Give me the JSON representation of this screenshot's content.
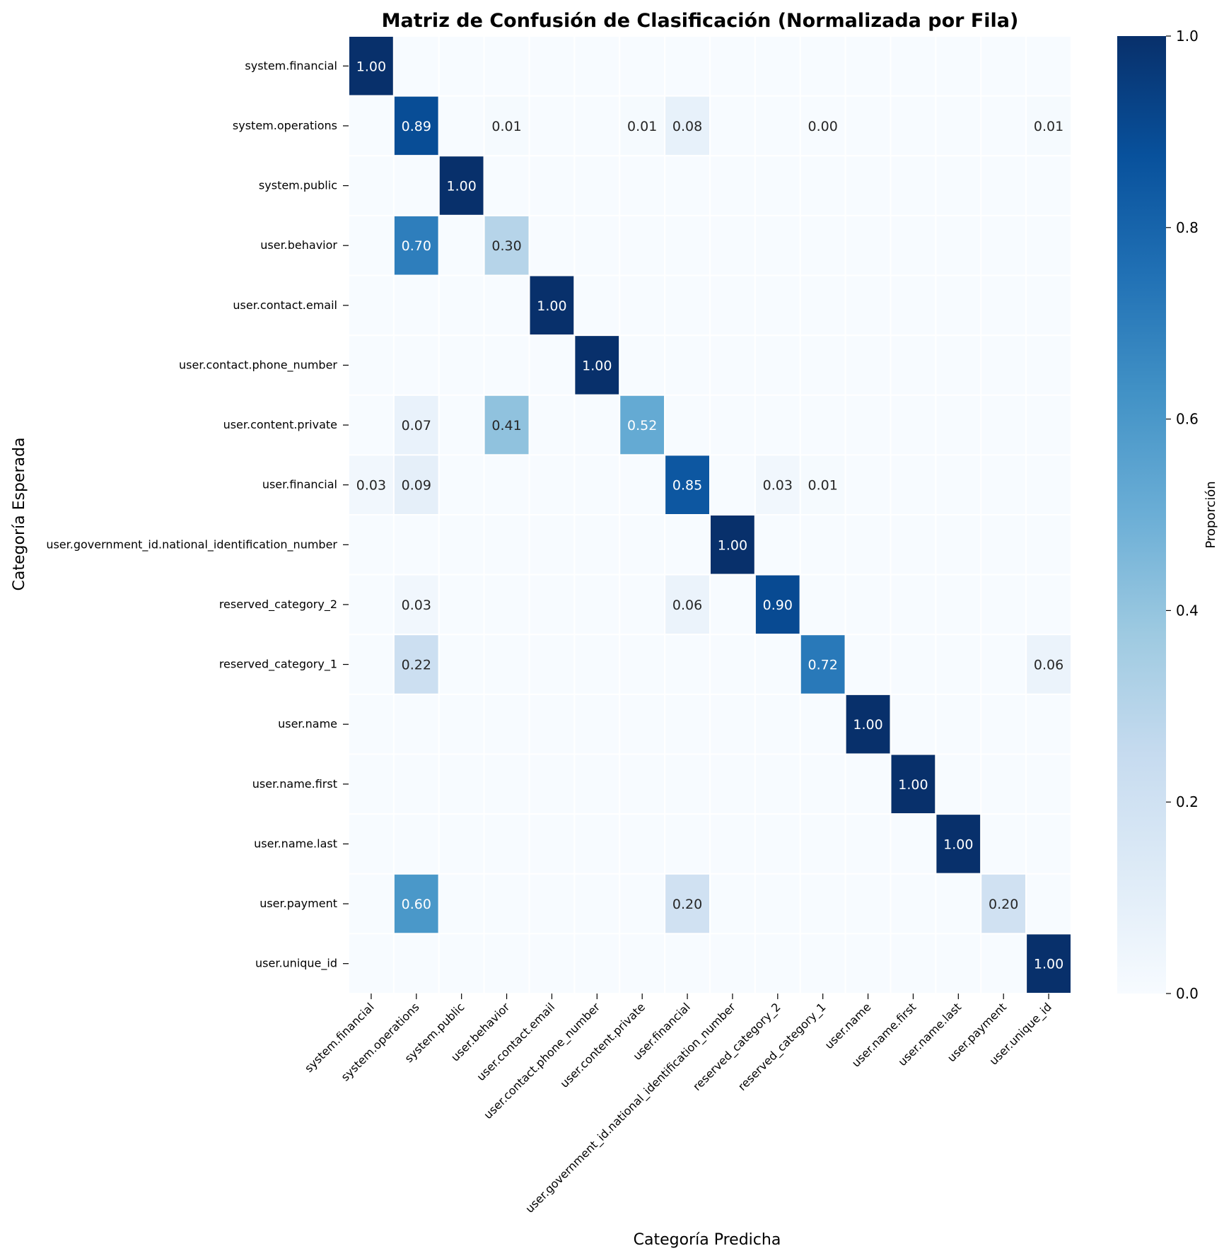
{
  "chart_data": {
    "type": "heatmap",
    "title": "Matriz de Confusión de Clasificación (Normalizada por Fila)",
    "xlabel": "Categoría Predicha",
    "ylabel": "Categoría Esperada",
    "colorbar_label": "Proporción",
    "colorbar_ticks": [
      "0.0",
      "0.2",
      "0.4",
      "0.6",
      "0.8",
      "1.0"
    ],
    "colorbar_range": [
      0,
      1
    ],
    "colormap": "Blues",
    "categories": [
      "system.financial",
      "system.operations",
      "system.public",
      "user.behavior",
      "user.contact.email",
      "user.contact.phone_number",
      "user.content.private",
      "user.financial",
      "user.government_id.national_identification_number",
      "reserved_category_2",
      "reserved_category_1",
      "user.name",
      "user.name.first",
      "user.name.last",
      "user.payment",
      "user.unique_id"
    ],
    "values": [
      [
        1.0,
        0,
        0,
        0,
        0,
        0,
        0,
        0,
        0,
        0,
        0,
        0,
        0,
        0,
        0,
        0
      ],
      [
        0,
        0.89,
        0,
        0.01,
        0,
        0,
        0.01,
        0.08,
        0,
        0,
        0.001,
        0,
        0,
        0,
        0,
        0.01
      ],
      [
        0,
        0,
        1.0,
        0,
        0,
        0,
        0,
        0,
        0,
        0,
        0,
        0,
        0,
        0,
        0,
        0
      ],
      [
        0,
        0.7,
        0,
        0.3,
        0,
        0,
        0,
        0,
        0,
        0,
        0,
        0,
        0,
        0,
        0,
        0
      ],
      [
        0,
        0,
        0,
        0,
        1.0,
        0,
        0,
        0,
        0,
        0,
        0,
        0,
        0,
        0,
        0,
        0
      ],
      [
        0,
        0,
        0,
        0,
        0,
        1.0,
        0,
        0,
        0,
        0,
        0,
        0,
        0,
        0,
        0,
        0
      ],
      [
        0,
        0.07,
        0,
        0.41,
        0,
        0,
        0.52,
        0,
        0,
        0,
        0,
        0,
        0,
        0,
        0,
        0
      ],
      [
        0.03,
        0.09,
        0,
        0,
        0,
        0,
        0,
        0.85,
        0,
        0.03,
        0.01,
        0,
        0,
        0,
        0,
        0
      ],
      [
        0,
        0,
        0,
        0,
        0,
        0,
        0,
        0,
        1.0,
        0,
        0,
        0,
        0,
        0,
        0,
        0
      ],
      [
        0,
        0.03,
        0,
        0,
        0,
        0,
        0,
        0.06,
        0,
        0.9,
        0,
        0,
        0,
        0,
        0,
        0
      ],
      [
        0,
        0.22,
        0,
        0,
        0,
        0,
        0,
        0,
        0,
        0,
        0.72,
        0,
        0,
        0,
        0,
        0.06
      ],
      [
        0,
        0,
        0,
        0,
        0,
        0,
        0,
        0,
        0,
        0,
        0,
        1.0,
        0,
        0,
        0,
        0
      ],
      [
        0,
        0,
        0,
        0,
        0,
        0,
        0,
        0,
        0,
        0,
        0,
        0,
        1.0,
        0,
        0,
        0
      ],
      [
        0,
        0,
        0,
        0,
        0,
        0,
        0,
        0,
        0,
        0,
        0,
        0,
        0,
        1.0,
        0,
        0
      ],
      [
        0,
        0.6,
        0,
        0,
        0,
        0,
        0,
        0.2,
        0,
        0,
        0,
        0,
        0,
        0,
        0.2,
        0
      ],
      [
        0,
        0,
        0,
        0,
        0,
        0,
        0,
        0,
        0,
        0,
        0,
        0,
        0,
        0,
        0,
        1.0
      ]
    ],
    "annotations": [
      [
        "1.00",
        "",
        "",
        "",
        "",
        "",
        "",
        "",
        "",
        "",
        "",
        "",
        "",
        "",
        "",
        ""
      ],
      [
        "",
        "0.89",
        "",
        "0.01",
        "",
        "",
        "0.01",
        "0.08",
        "",
        "",
        "0.00",
        "",
        "",
        "",
        "",
        "0.01"
      ],
      [
        "",
        "",
        "1.00",
        "",
        "",
        "",
        "",
        "",
        "",
        "",
        "",
        "",
        "",
        "",
        "",
        ""
      ],
      [
        "",
        "0.70",
        "",
        "0.30",
        "",
        "",
        "",
        "",
        "",
        "",
        "",
        "",
        "",
        "",
        "",
        ""
      ],
      [
        "",
        "",
        "",
        "",
        "1.00",
        "",
        "",
        "",
        "",
        "",
        "",
        "",
        "",
        "",
        "",
        ""
      ],
      [
        "",
        "",
        "",
        "",
        "",
        "1.00",
        "",
        "",
        "",
        "",
        "",
        "",
        "",
        "",
        "",
        ""
      ],
      [
        "",
        "0.07",
        "",
        "0.41",
        "",
        "",
        "0.52",
        "",
        "",
        "",
        "",
        "",
        "",
        "",
        "",
        ""
      ],
      [
        "0.03",
        "0.09",
        "",
        "",
        "",
        "",
        "",
        "0.85",
        "",
        "0.03",
        "0.01",
        "",
        "",
        "",
        "",
        ""
      ],
      [
        "",
        "",
        "",
        "",
        "",
        "",
        "",
        "",
        "1.00",
        "",
        "",
        "",
        "",
        "",
        "",
        ""
      ],
      [
        "",
        "0.03",
        "",
        "",
        "",
        "",
        "",
        "0.06",
        "",
        "0.90",
        "",
        "",
        "",
        "",
        "",
        ""
      ],
      [
        "",
        "0.22",
        "",
        "",
        "",
        "",
        "",
        "",
        "",
        "",
        "0.72",
        "",
        "",
        "",
        "",
        "0.06"
      ],
      [
        "",
        "",
        "",
        "",
        "",
        "",
        "",
        "",
        "",
        "",
        "",
        "1.00",
        "",
        "",
        "",
        ""
      ],
      [
        "",
        "",
        "",
        "",
        "",
        "",
        "",
        "",
        "",
        "",
        "",
        "",
        "1.00",
        "",
        "",
        ""
      ],
      [
        "",
        "",
        "",
        "",
        "",
        "",
        "",
        "",
        "",
        "",
        "",
        "",
        "",
        "1.00",
        "",
        ""
      ],
      [
        "",
        "0.60",
        "",
        "",
        "",
        "",
        "",
        "0.20",
        "",
        "",
        "",
        "",
        "",
        "",
        "0.20",
        ""
      ],
      [
        "",
        "",
        "",
        "",
        "",
        "",
        "",
        "",
        "",
        "",
        "",
        "",
        "",
        "",
        "",
        "1.00"
      ]
    ]
  }
}
